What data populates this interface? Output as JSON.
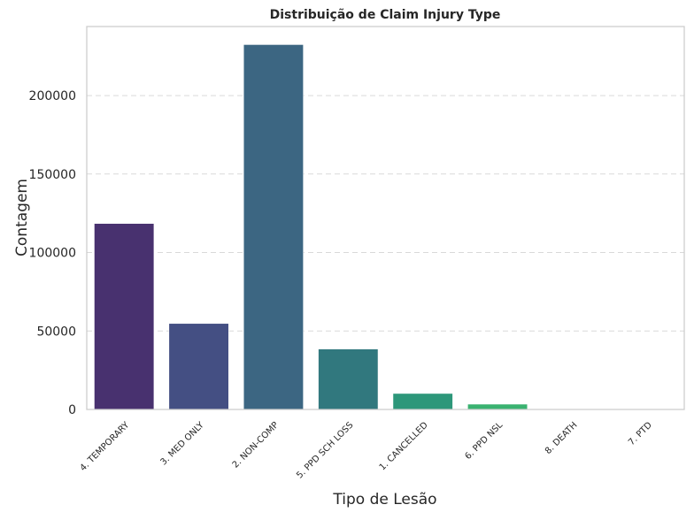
{
  "chart_data": {
    "type": "bar",
    "title": "Distribuição de Claim Injury Type",
    "xlabel": "Tipo de Lesão",
    "ylabel": "Contagem",
    "categories": [
      "4. TEMPORARY",
      "3. MED ONLY",
      "2. NON-COMP",
      "5. PPD SCH LOSS",
      "1. CANCELLED",
      "6. PPD NSL",
      "8. DEATH",
      "7. PTD"
    ],
    "values": [
      118500,
      54800,
      232500,
      38500,
      10200,
      3400,
      150,
      100
    ],
    "colors": [
      "#48316f",
      "#444f83",
      "#3c6682",
      "#31787e",
      "#2d977a",
      "#3ab270",
      "#7cc95a",
      "#c5d84a"
    ],
    "yticks": [
      0,
      50000,
      100000,
      150000,
      200000
    ],
    "ytick_labels": [
      "0",
      "50000",
      "100000",
      "150000",
      "200000"
    ],
    "ylim": [
      0,
      244000
    ],
    "grid": "y-dashed"
  }
}
